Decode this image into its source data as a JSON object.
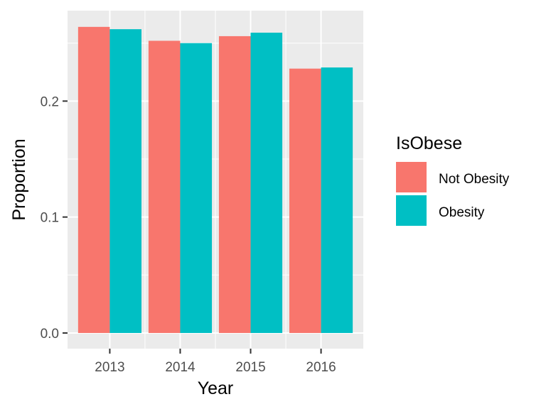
{
  "chart_data": {
    "type": "bar",
    "categories": [
      "2013",
      "2014",
      "2015",
      "2016"
    ],
    "series": [
      {
        "name": "Not Obesity",
        "values": [
          0.264,
          0.252,
          0.256,
          0.228
        ]
      },
      {
        "name": "Obesity",
        "values": [
          0.262,
          0.25,
          0.259,
          0.229
        ]
      }
    ],
    "xlabel": "Year",
    "ylabel": "Proportion",
    "ylim": [
      -0.0135,
      0.278
    ],
    "yticks": [
      0.0,
      0.1,
      0.2
    ],
    "ytick_labels": [
      "0.0",
      "0.1",
      "0.2"
    ],
    "legend": {
      "title": "IsObese",
      "position": "right"
    },
    "colors": {
      "Not Obesity": "#F8766D",
      "Obesity": "#00BFC4",
      "panel_background": "#EBEBEB",
      "grid": "#FFFFFF"
    },
    "grid": true
  }
}
